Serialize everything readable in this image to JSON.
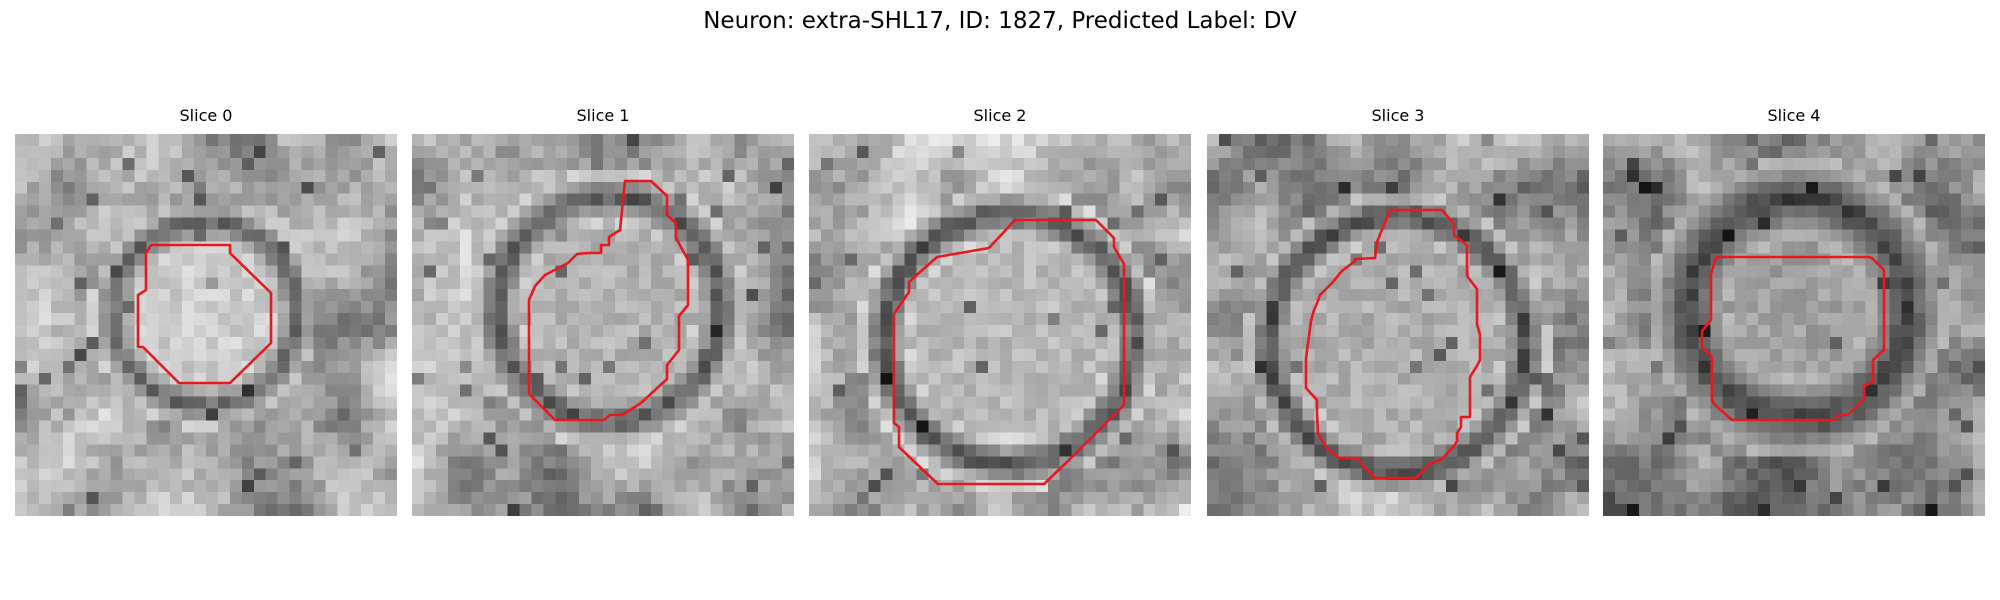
{
  "title": "Neuron: extra-SHL17, ID: 1827, Predicted Label: DV",
  "contour_color": "#e8181e",
  "panels": [
    {
      "label": "Slice 0",
      "seed": 11,
      "ring": [
        160,
        85
      ],
      "inner": 205,
      "bright": 215
    },
    {
      "label": "Slice 1",
      "seed": 23,
      "ring": [
        150,
        75
      ],
      "inner": 180,
      "bright": 215
    },
    {
      "label": "Slice 2",
      "seed": 37,
      "ring": [
        150,
        60
      ],
      "inner": 185,
      "bright": 225
    },
    {
      "label": "Slice 3",
      "seed": 41,
      "ring": [
        150,
        60
      ],
      "inner": 175,
      "bright": 210
    },
    {
      "label": "Slice 4",
      "seed": 53,
      "ring": [
        170,
        55
      ],
      "inner": 160,
      "bright": 190
    }
  ]
}
